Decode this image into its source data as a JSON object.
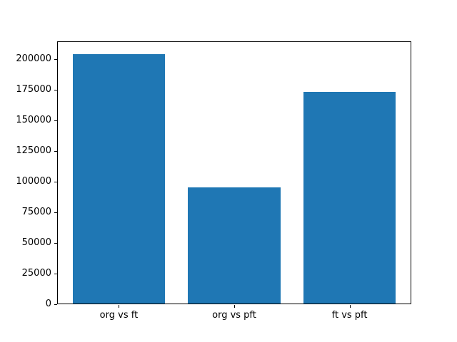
{
  "chart_data": {
    "type": "bar",
    "title": "",
    "xlabel": "",
    "ylabel": "",
    "categories": [
      "org vs ft",
      "org vs pft",
      "ft vs pft"
    ],
    "values": [
      204000,
      95400,
      173200
    ],
    "yticks": [
      0,
      25000,
      50000,
      75000,
      100000,
      125000,
      150000,
      175000,
      200000
    ],
    "ylim": [
      0,
      214500
    ],
    "xlim": [
      -0.535,
      2.535
    ],
    "bar_width_units": 0.8,
    "bar_color": "#1f77b4",
    "axis_color": "#000000",
    "background_color": "#ffffff",
    "grid": false,
    "legend": null
  }
}
